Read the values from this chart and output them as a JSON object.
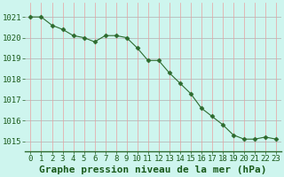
{
  "x": [
    0,
    1,
    2,
    3,
    4,
    5,
    6,
    7,
    8,
    9,
    10,
    11,
    12,
    13,
    14,
    15,
    16,
    17,
    18,
    19,
    20,
    21,
    22,
    23
  ],
  "y": [
    1021.0,
    1021.0,
    1020.6,
    1020.4,
    1020.1,
    1020.0,
    1019.8,
    1020.1,
    1020.1,
    1020.0,
    1019.5,
    1018.9,
    1018.9,
    1018.3,
    1017.8,
    1017.3,
    1016.6,
    1016.2,
    1015.8,
    1015.3,
    1015.1,
    1015.1,
    1015.2,
    1015.1
  ],
  "line_color": "#2d6a2d",
  "marker": "D",
  "marker_size": 2.5,
  "bg_color": "#cef5ee",
  "grid_color_h": "#b0b0b0",
  "grid_color_v": "#e8a0a0",
  "xlabel": "Graphe pression niveau de la mer (hPa)",
  "xlabel_color": "#1a5a1a",
  "xlabel_fontsize": 8,
  "tick_color": "#1a5a1a",
  "tick_fontsize": 6.5,
  "ylim": [
    1014.5,
    1021.7
  ],
  "yticks": [
    1015,
    1016,
    1017,
    1018,
    1019,
    1020,
    1021
  ],
  "xticks": [
    0,
    1,
    2,
    3,
    4,
    5,
    6,
    7,
    8,
    9,
    10,
    11,
    12,
    13,
    14,
    15,
    16,
    17,
    18,
    19,
    20,
    21,
    22,
    23
  ],
  "border_color": "#2d6a2d"
}
